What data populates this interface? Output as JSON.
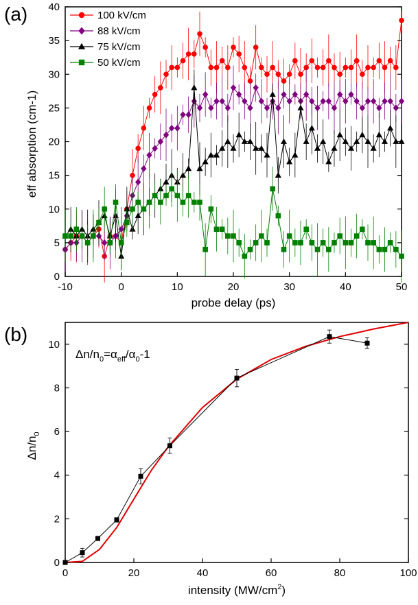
{
  "chart_data": [
    {
      "panel": "(a)",
      "type": "line",
      "xlabel": "probe delay (ps)",
      "ylabel": "eff absorption (cm-1)",
      "xlim": [
        -10,
        50
      ],
      "ylim": [
        0,
        40
      ],
      "xticks": [
        -10,
        0,
        10,
        20,
        30,
        40,
        50
      ],
      "yticks": [
        0,
        5,
        10,
        15,
        20,
        25,
        30,
        35,
        40
      ],
      "legend": "top-left",
      "grid": false,
      "series": [
        {
          "name": "100 kV/cm",
          "color": "#ff0000",
          "marker": "circle",
          "x": [
            -10,
            -9,
            -8,
            -7,
            -6,
            -5,
            -4,
            -3,
            -2,
            -1,
            0,
            1,
            2,
            3,
            4,
            5,
            6,
            7,
            8,
            9,
            10,
            11,
            12,
            13,
            14,
            15,
            16,
            17,
            18,
            19,
            20,
            21,
            22,
            23,
            24,
            25,
            26,
            27,
            28,
            29,
            30,
            31,
            32,
            33,
            34,
            35,
            36,
            37,
            38,
            39,
            40,
            41,
            42,
            43,
            44,
            45,
            46,
            47,
            48,
            49,
            50
          ],
          "y": [
            4,
            5,
            6,
            6,
            5,
            6,
            7,
            3,
            6,
            6,
            5,
            10,
            15,
            19,
            22,
            25,
            27,
            28,
            30,
            31,
            31,
            32,
            33,
            33,
            36,
            34,
            31,
            31,
            32,
            31,
            34,
            33,
            31,
            29,
            34,
            31,
            30,
            31,
            30,
            29,
            30,
            32,
            30,
            31,
            32,
            31,
            31,
            32,
            31,
            30,
            31,
            31,
            32,
            30,
            31,
            31,
            32,
            31,
            32,
            31,
            38
          ]
        },
        {
          "name": "88 kV/cm",
          "color": "#800080",
          "marker": "diamond",
          "x": [
            -10,
            -9,
            -8,
            -7,
            -6,
            -5,
            -4,
            -3,
            -2,
            -1,
            0,
            1,
            2,
            3,
            4,
            5,
            6,
            7,
            8,
            9,
            10,
            11,
            12,
            13,
            14,
            15,
            16,
            17,
            18,
            19,
            20,
            21,
            22,
            23,
            24,
            25,
            26,
            27,
            28,
            29,
            30,
            31,
            32,
            33,
            34,
            35,
            36,
            37,
            38,
            39,
            40,
            41,
            42,
            43,
            44,
            45,
            46,
            47,
            48,
            49,
            50
          ],
          "y": [
            4,
            5,
            5,
            6,
            5,
            6,
            6,
            5,
            5,
            6,
            7,
            9,
            12,
            14,
            16,
            18,
            19,
            20,
            21,
            22,
            22,
            24,
            24,
            26,
            25,
            27,
            25,
            26,
            26,
            25,
            28,
            27,
            26,
            25,
            28,
            26,
            25,
            26,
            25,
            27,
            26,
            27,
            26,
            27,
            26,
            25,
            26,
            26,
            25,
            27,
            26,
            27,
            26,
            25,
            26,
            26,
            25,
            26,
            26,
            25,
            26
          ]
        },
        {
          "name": "75 kV/cm",
          "color": "#000000",
          "marker": "triangle",
          "x": [
            -10,
            -9,
            -8,
            -7,
            -6,
            -5,
            -4,
            -3,
            -2,
            -1,
            0,
            1,
            2,
            3,
            4,
            5,
            6,
            7,
            8,
            9,
            10,
            11,
            12,
            13,
            14,
            15,
            16,
            17,
            18,
            19,
            20,
            21,
            22,
            23,
            24,
            25,
            26,
            27,
            28,
            29,
            30,
            31,
            32,
            33,
            34,
            35,
            36,
            37,
            38,
            39,
            40,
            41,
            42,
            43,
            44,
            45,
            46,
            47,
            48,
            49,
            50
          ],
          "y": [
            6,
            7,
            6,
            7,
            6,
            7,
            8,
            9,
            6,
            9,
            3,
            10,
            7,
            9,
            10,
            11,
            12,
            13,
            14,
            15,
            14,
            15,
            16,
            28,
            16,
            17,
            18,
            18,
            19,
            20,
            19,
            21,
            20,
            20,
            19,
            19,
            18,
            27,
            15,
            20,
            17,
            18,
            25,
            20,
            22,
            19,
            20,
            17,
            19,
            21,
            20,
            19,
            20,
            21,
            20,
            19,
            21,
            20,
            22,
            20,
            20
          ]
        },
        {
          "name": "50 kV/cm",
          "color": "#008000",
          "marker": "square",
          "x": [
            -10,
            -9,
            -8,
            -7,
            -6,
            -5,
            -4,
            -3,
            -2,
            -1,
            0,
            1,
            2,
            3,
            4,
            5,
            6,
            7,
            8,
            9,
            10,
            11,
            12,
            13,
            14,
            15,
            16,
            17,
            18,
            19,
            20,
            21,
            22,
            23,
            24,
            25,
            26,
            27,
            28,
            29,
            30,
            31,
            32,
            33,
            34,
            35,
            36,
            37,
            38,
            39,
            40,
            41,
            42,
            43,
            44,
            45,
            46,
            47,
            48,
            49,
            50
          ],
          "y": [
            6,
            6,
            7,
            6,
            5,
            6,
            8,
            10,
            5,
            11,
            5,
            8,
            10,
            11,
            10,
            11,
            12,
            11,
            12,
            13,
            12,
            11,
            12,
            11,
            11,
            4,
            10,
            7,
            7,
            6,
            6,
            5,
            3,
            4,
            5,
            6,
            5,
            13,
            9,
            4,
            6,
            5,
            5,
            7,
            5,
            4,
            5,
            4,
            5,
            6,
            5,
            5,
            6,
            7,
            5,
            5,
            4,
            4,
            5,
            4,
            3
          ]
        }
      ]
    },
    {
      "panel": "(b)",
      "type": "line",
      "xlabel_main": "intensity (MW/cm",
      "xlabel_sup": "2",
      "xlabel_end": ")",
      "ylabel_main": "Δn/n",
      "ylabel_sub": "0",
      "annotation": {
        "parts": [
          "Δn/n",
          "0",
          "=α",
          "eff",
          "/α",
          "0",
          "-1"
        ]
      },
      "xlim": [
        0,
        100
      ],
      "ylim": [
        0,
        11
      ],
      "xticks": [
        0,
        20,
        40,
        60,
        80,
        100
      ],
      "yticks": [
        0,
        2,
        4,
        6,
        8,
        10
      ],
      "grid": false,
      "series": [
        {
          "marker": "square",
          "color": "#000000",
          "x": [
            0,
            5,
            9.5,
            15,
            22,
            30.5,
            50,
            77,
            88
          ],
          "y": [
            0,
            0.45,
            1.1,
            1.95,
            3.95,
            5.35,
            8.45,
            10.35,
            10.05
          ],
          "err": [
            0,
            0.2,
            0.1,
            0.1,
            0.35,
            0.35,
            0.4,
            0.3,
            0.25
          ]
        },
        {
          "line": "fit",
          "color": "#e00000",
          "x": [
            0,
            5,
            10,
            15,
            20,
            25,
            30,
            40,
            50,
            60,
            70,
            80,
            90,
            100
          ],
          "y": [
            0,
            0.05,
            0.6,
            1.6,
            2.9,
            4.2,
            5.3,
            7.1,
            8.4,
            9.3,
            9.9,
            10.35,
            10.7,
            11.0
          ]
        }
      ]
    }
  ]
}
